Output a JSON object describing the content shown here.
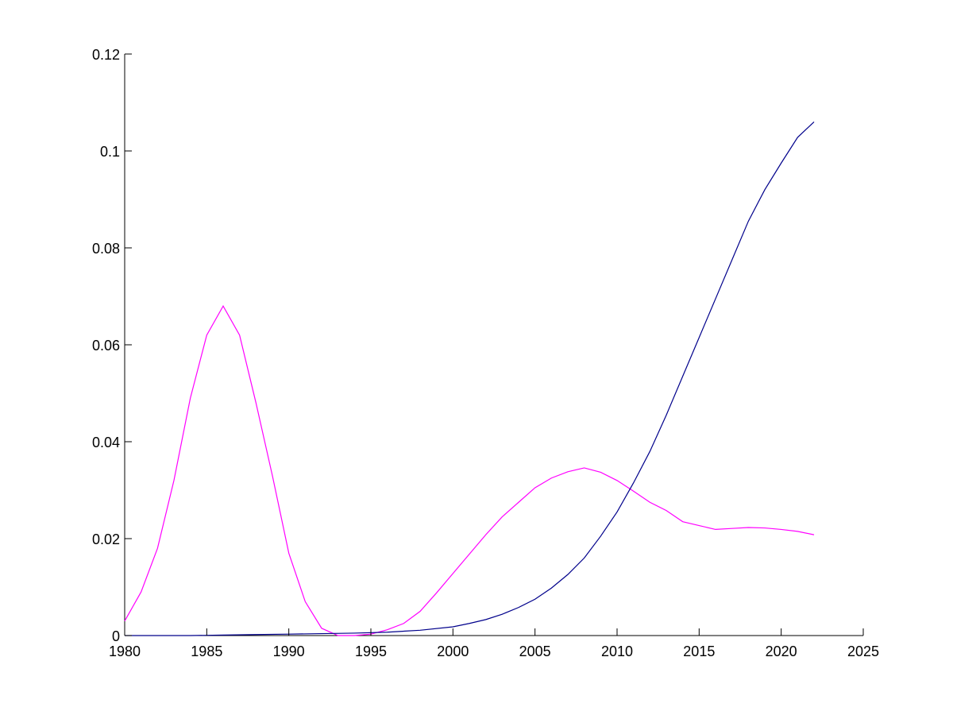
{
  "chart_data": {
    "type": "line",
    "title": "",
    "xlabel": "",
    "ylabel": "",
    "xlim": [
      1980,
      2025
    ],
    "ylim": [
      0,
      0.12
    ],
    "grid": false,
    "legend": "none",
    "xticks": [
      1980,
      1985,
      1990,
      1995,
      2000,
      2005,
      2010,
      2015,
      2020,
      2025
    ],
    "yticks": [
      0,
      0.02,
      0.04,
      0.06,
      0.08,
      0.1,
      0.12
    ],
    "xtick_labels": [
      "1980",
      "1985",
      "1990",
      "1995",
      "2000",
      "2005",
      "2010",
      "2015",
      "2020",
      "2025"
    ],
    "ytick_labels": [
      "0",
      "0.02",
      "0.04",
      "0.06",
      "0.08",
      "0.1",
      "0.12"
    ],
    "series": [
      {
        "color": "#ff00ff",
        "x": [
          1980,
          1981,
          1982,
          1983,
          1984,
          1985,
          1986,
          1987,
          1988,
          1989,
          1990,
          1991,
          1992,
          1993,
          1994,
          1995,
          1996,
          1997,
          1998,
          1999,
          2000,
          2001,
          2002,
          2003,
          2004,
          2005,
          2006,
          2007,
          2008,
          2009,
          2010,
          2011,
          2012,
          2013,
          2014,
          2015,
          2016,
          2017,
          2018,
          2019,
          2020,
          2021,
          2022
        ],
        "y": [
          0.003,
          0.009,
          0.018,
          0.032,
          0.049,
          0.062,
          0.068,
          0.062,
          0.048,
          0.033,
          0.017,
          0.007,
          0.0015,
          0.0,
          0.0,
          0.0003,
          0.0012,
          0.0025,
          0.005,
          0.0088,
          0.0128,
          0.0168,
          0.0208,
          0.0245,
          0.0275,
          0.0305,
          0.0325,
          0.0338,
          0.0346,
          0.0337,
          0.032,
          0.0298,
          0.0275,
          0.0258,
          0.0235,
          0.0227,
          0.0219,
          0.0221,
          0.0223,
          0.0222,
          0.0219,
          0.0215,
          0.0208
        ]
      },
      {
        "color": "#00008b",
        "x": [
          1980,
          1982,
          1984,
          1986,
          1988,
          1990,
          1992,
          1994,
          1996,
          1998,
          2000,
          2001,
          2002,
          2003,
          2004,
          2005,
          2006,
          2007,
          2008,
          2009,
          2010,
          2011,
          2012,
          2013,
          2014,
          2015,
          2016,
          2017,
          2018,
          2019,
          2020,
          2021,
          2022
        ],
        "y": [
          0.0,
          0.0,
          0.0,
          0.0001,
          0.0002,
          0.0003,
          0.0004,
          0.0005,
          0.0007,
          0.0011,
          0.0018,
          0.0025,
          0.0033,
          0.0044,
          0.0058,
          0.0075,
          0.0098,
          0.0126,
          0.016,
          0.0205,
          0.0255,
          0.0315,
          0.038,
          0.0455,
          0.0535,
          0.0615,
          0.0695,
          0.0775,
          0.0855,
          0.092,
          0.0975,
          0.1028,
          0.106
        ]
      }
    ]
  }
}
